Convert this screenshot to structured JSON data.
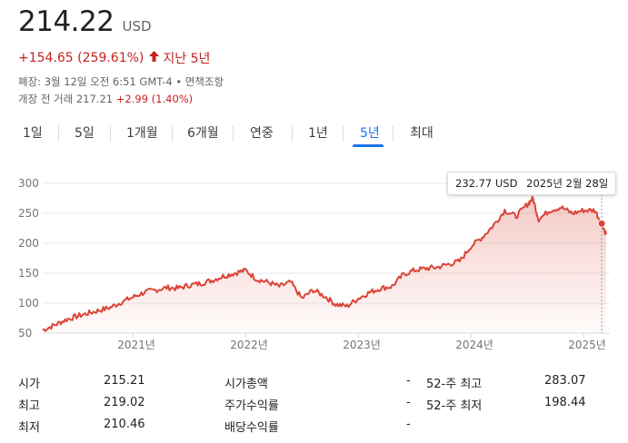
{
  "quote": {
    "price": "214.22",
    "currency": "USD",
    "change": "+154.65 (259.61%)",
    "change_arrow": "🡑",
    "change_period": "지난 5년",
    "close_info": "폐장: 3월 12일 오전 6:51 GMT-4 • 면책조항",
    "premarket_label": "개장 전 거래 217.21",
    "premarket_change": "+2.99 (1.40%)"
  },
  "range_tabs": [
    "1일",
    "5일",
    "1개월",
    "6개월",
    "연중",
    "1년",
    "5년",
    "최대"
  ],
  "active_tab": "5년",
  "tooltip": {
    "price": "232.77 USD",
    "date": "2025년 2월 28일"
  },
  "colors": {
    "line": "#db4437",
    "fill": "#f8d7d5",
    "accent": "#1a73e8",
    "negative": "#c5221f"
  },
  "chart_data": {
    "type": "area",
    "x_ticks": [
      "2021년",
      "2022년",
      "2023년",
      "2024년",
      "2025년"
    ],
    "y_ticks": [
      300,
      250,
      200,
      150,
      100,
      50
    ],
    "ylim": [
      50,
      300
    ],
    "xlim": [
      2020.2,
      2025.2
    ],
    "grid": true,
    "series": [
      {
        "x": [
          2020.2,
          2020.3,
          2020.4,
          2020.5,
          2020.6,
          2020.7,
          2020.8,
          2020.9,
          2021.0,
          2021.1,
          2021.2,
          2021.3,
          2021.4,
          2021.5,
          2021.6,
          2021.7,
          2021.8,
          2021.9,
          2022.0,
          2022.1,
          2022.2,
          2022.3,
          2022.4,
          2022.5,
          2022.6,
          2022.7,
          2022.8,
          2022.9,
          2023.0,
          2023.1,
          2023.2,
          2023.3,
          2023.4,
          2023.5,
          2023.6,
          2023.7,
          2023.8,
          2023.9,
          2024.0,
          2024.1,
          2024.2,
          2024.3,
          2024.4,
          2024.5,
          2024.55,
          2024.6,
          2024.7,
          2024.8,
          2024.9,
          2025.0,
          2025.1,
          2025.16,
          2025.2
        ],
        "y": [
          55,
          63,
          72,
          78,
          83,
          88,
          93,
          102,
          110,
          118,
          122,
          126,
          125,
          130,
          133,
          138,
          145,
          150,
          155,
          140,
          135,
          128,
          135,
          108,
          122,
          112,
          98,
          95,
          108,
          118,
          125,
          128,
          148,
          155,
          158,
          160,
          165,
          170,
          195,
          210,
          230,
          255,
          245,
          265,
          275,
          240,
          255,
          260,
          250,
          255,
          255,
          233,
          215
        ]
      }
    ]
  },
  "stats": [
    {
      "label": "시가",
      "value": "215.21"
    },
    {
      "label": "최고",
      "value": "219.02"
    },
    {
      "label": "최저",
      "value": "210.46"
    },
    {
      "label": "시가총액",
      "value": "-"
    },
    {
      "label": "주가수익률",
      "value": "-"
    },
    {
      "label": "배당수익률",
      "value": "-"
    },
    {
      "label": "52-주 최고",
      "value": "283.07"
    },
    {
      "label": "52-주 최저",
      "value": "198.44"
    }
  ]
}
